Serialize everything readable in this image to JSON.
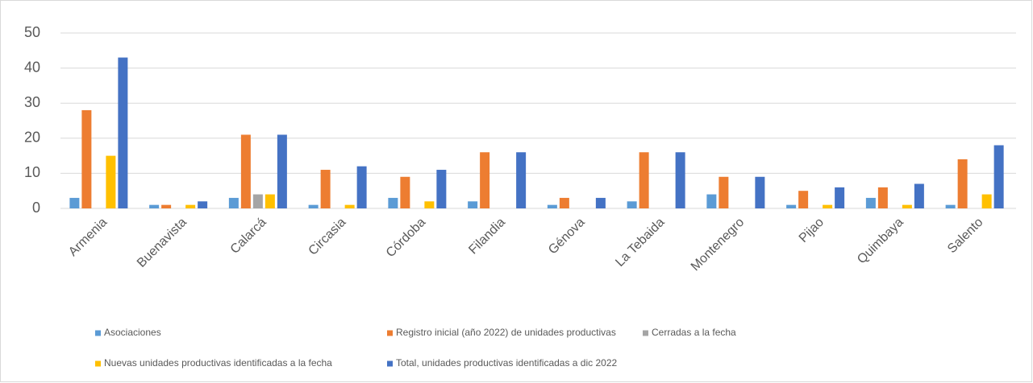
{
  "chart_data": {
    "type": "bar",
    "categories": [
      "Armenia",
      "Buenavista",
      "Calarcá",
      "Circasia",
      "Córdoba",
      "Filandia",
      "Génova",
      "La Tebaida",
      "Montenegro",
      "Pijao",
      "Quimbaya",
      "Salento"
    ],
    "series": [
      {
        "name": "Asociaciones",
        "color": "#5b9bd5",
        "values": [
          3,
          1,
          3,
          1,
          3,
          2,
          1,
          2,
          4,
          1,
          3,
          1
        ]
      },
      {
        "name": "Registro inicial (año 2022) de unidades productivas",
        "color": "#ed7d31",
        "values": [
          28,
          1,
          21,
          11,
          9,
          16,
          3,
          16,
          9,
          5,
          6,
          14
        ]
      },
      {
        "name": "Cerradas a la fecha",
        "color": "#a5a5a5",
        "values": [
          0,
          0,
          4,
          0,
          0,
          0,
          0,
          0,
          0,
          0,
          0,
          0
        ]
      },
      {
        "name": "Nuevas unidades productivas identificadas a la fecha",
        "color": "#ffc000",
        "values": [
          15,
          1,
          4,
          1,
          2,
          0,
          0,
          0,
          0,
          1,
          1,
          4
        ]
      },
      {
        "name": "Total, unidades productivas identificadas a dic 2022",
        "color": "#4472c4",
        "values": [
          43,
          2,
          21,
          12,
          11,
          16,
          3,
          16,
          9,
          6,
          7,
          18
        ]
      }
    ],
    "ylim": [
      0,
      50
    ],
    "yticks": [
      0,
      10,
      20,
      30,
      40,
      50
    ],
    "grid": true,
    "legend": "bottom"
  }
}
